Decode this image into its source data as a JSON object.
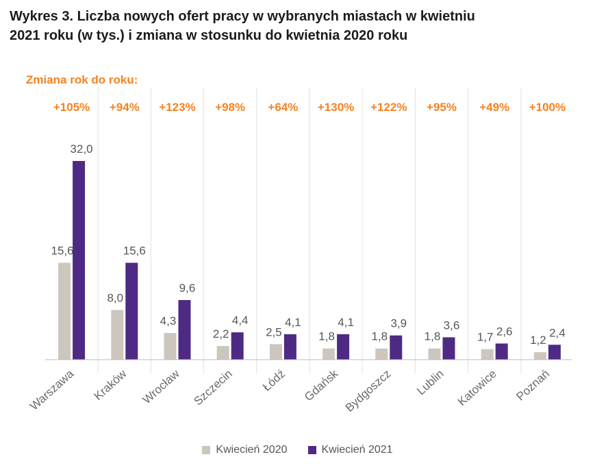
{
  "title": {
    "line1": "Wykres 3. Liczba nowych ofert pracy w wybranych miastach w kwietniu",
    "line2": "2021 roku (w tys.) i zmiana w stosunku do kwietnia 2020 roku"
  },
  "change_label": "Zmiana rok do roku:",
  "colors": {
    "series_2020": "#cdc6bf",
    "series_2021": "#4e2a84",
    "accent": "#f58220"
  },
  "chart_data": {
    "type": "bar",
    "categories": [
      "Warszawa",
      "Kraków",
      "Wrocław",
      "Szczecin",
      "Łódź",
      "Gdańsk",
      "Bydgoszcz",
      "Lublin",
      "Katowice",
      "Poznań"
    ],
    "series": [
      {
        "name": "Kwiecień 2020",
        "values": [
          15.6,
          8.0,
          4.3,
          2.2,
          2.5,
          1.8,
          1.8,
          1.8,
          1.7,
          1.2
        ],
        "labels": [
          "15,6",
          "8,0",
          "4,3",
          "2,2",
          "2,5",
          "1,8",
          "1,8",
          "1,8",
          "1,7",
          "1,2"
        ]
      },
      {
        "name": "Kwiecień 2021",
        "values": [
          32.0,
          15.6,
          9.6,
          4.4,
          4.1,
          4.1,
          3.9,
          3.6,
          2.6,
          2.4
        ],
        "labels": [
          "32,0",
          "15,6",
          "9,6",
          "4,4",
          "4,1",
          "4,1",
          "3,9",
          "3,6",
          "2,6",
          "2,4"
        ]
      }
    ],
    "changes": [
      "+105%",
      "+94%",
      "+123%",
      "+98%",
      "+64%",
      "+130%",
      "+122%",
      "+95%",
      "+49%",
      "+100%"
    ],
    "ylim": [
      0,
      32.0
    ],
    "grid": false,
    "legend_position": "bottom-center"
  }
}
